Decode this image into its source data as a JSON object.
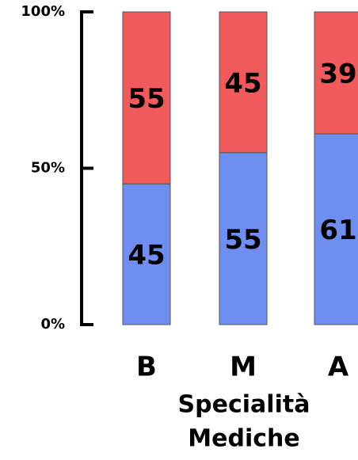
{
  "chart_data": {
    "type": "stacked_bar_100",
    "categories": [
      "B",
      "M",
      "A"
    ],
    "series": [
      {
        "name": "blue",
        "color": "#6f8ff0",
        "values": [
          45,
          55,
          61
        ]
      },
      {
        "name": "red",
        "color": "#f05a5a",
        "values": [
          55,
          45,
          39
        ]
      }
    ],
    "ylim": [
      0,
      100
    ],
    "yticks": [
      {
        "value": 0,
        "label": "0%"
      },
      {
        "value": 50,
        "label": "50%"
      },
      {
        "value": 100,
        "label": "100%"
      }
    ],
    "x_label_lines": [
      "Specialità",
      "Mediche"
    ]
  }
}
